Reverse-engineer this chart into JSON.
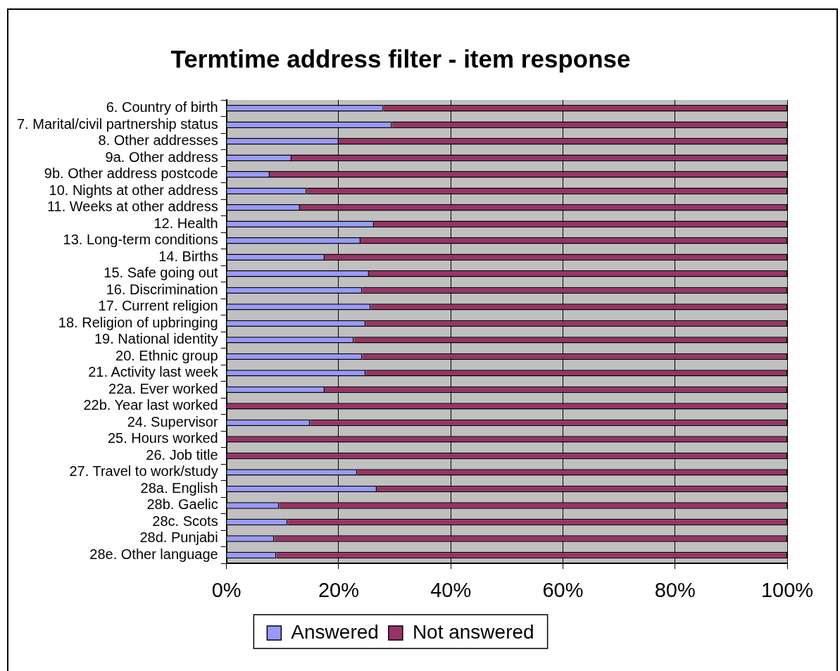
{
  "chart_data": {
    "type": "bar",
    "orientation": "horizontal",
    "stacked": true,
    "title": "Termtime address filter - item response",
    "categories": [
      "6. Country of birth",
      "7. Marital/civil partnership status",
      "8. Other addresses",
      "9a. Other address",
      "9b. Other address postcode",
      "10. Nights at other address",
      "11. Weeks at other address",
      "12. Health",
      "13. Long-term conditions",
      "14. Births",
      "15. Safe going out",
      "16. Discrimination",
      "17. Current religion",
      "18. Religion of upbringing",
      "19. National identity",
      "20. Ethnic group",
      "21. Activity last week",
      "22a. Ever worked",
      "22b. Year last worked",
      "24. Supervisor",
      "25. Hours worked",
      "26. Job title",
      "27. Travel to work/study",
      "28a. English",
      "28b. Gaelic",
      "28c. Scots",
      "28d. Punjabi",
      "28e. Other language"
    ],
    "series": [
      {
        "name": "Answered",
        "color": "#9999ff",
        "values": [
          28.0,
          29.5,
          20.0,
          11.6,
          7.7,
          14.3,
          13.1,
          26.3,
          23.9,
          17.5,
          25.4,
          24.2,
          25.7,
          24.8,
          22.7,
          24.2,
          24.8,
          17.5,
          0,
          14.9,
          0,
          0,
          23.3,
          26.8,
          9.4,
          10.9,
          8.5,
          8.9
        ]
      },
      {
        "name": "Not answered",
        "color": "#993366",
        "values": [
          72.0,
          70.5,
          80.0,
          88.4,
          92.3,
          85.7,
          86.9,
          73.7,
          76.1,
          82.5,
          74.6,
          75.8,
          74.3,
          75.2,
          77.3,
          75.8,
          75.2,
          82.5,
          100,
          85.1,
          100,
          100,
          76.7,
          73.2,
          90.6,
          89.1,
          91.5,
          91.1
        ]
      }
    ],
    "xlim": [
      0,
      100
    ],
    "xticks": [
      {
        "value": 0,
        "label": "0%"
      },
      {
        "value": 20,
        "label": "20%"
      },
      {
        "value": 40,
        "label": "40%"
      },
      {
        "value": 60,
        "label": "60%"
      },
      {
        "value": 80,
        "label": "80%"
      },
      {
        "value": 100,
        "label": "100%"
      }
    ],
    "grid": "x",
    "legend": "bottom"
  }
}
